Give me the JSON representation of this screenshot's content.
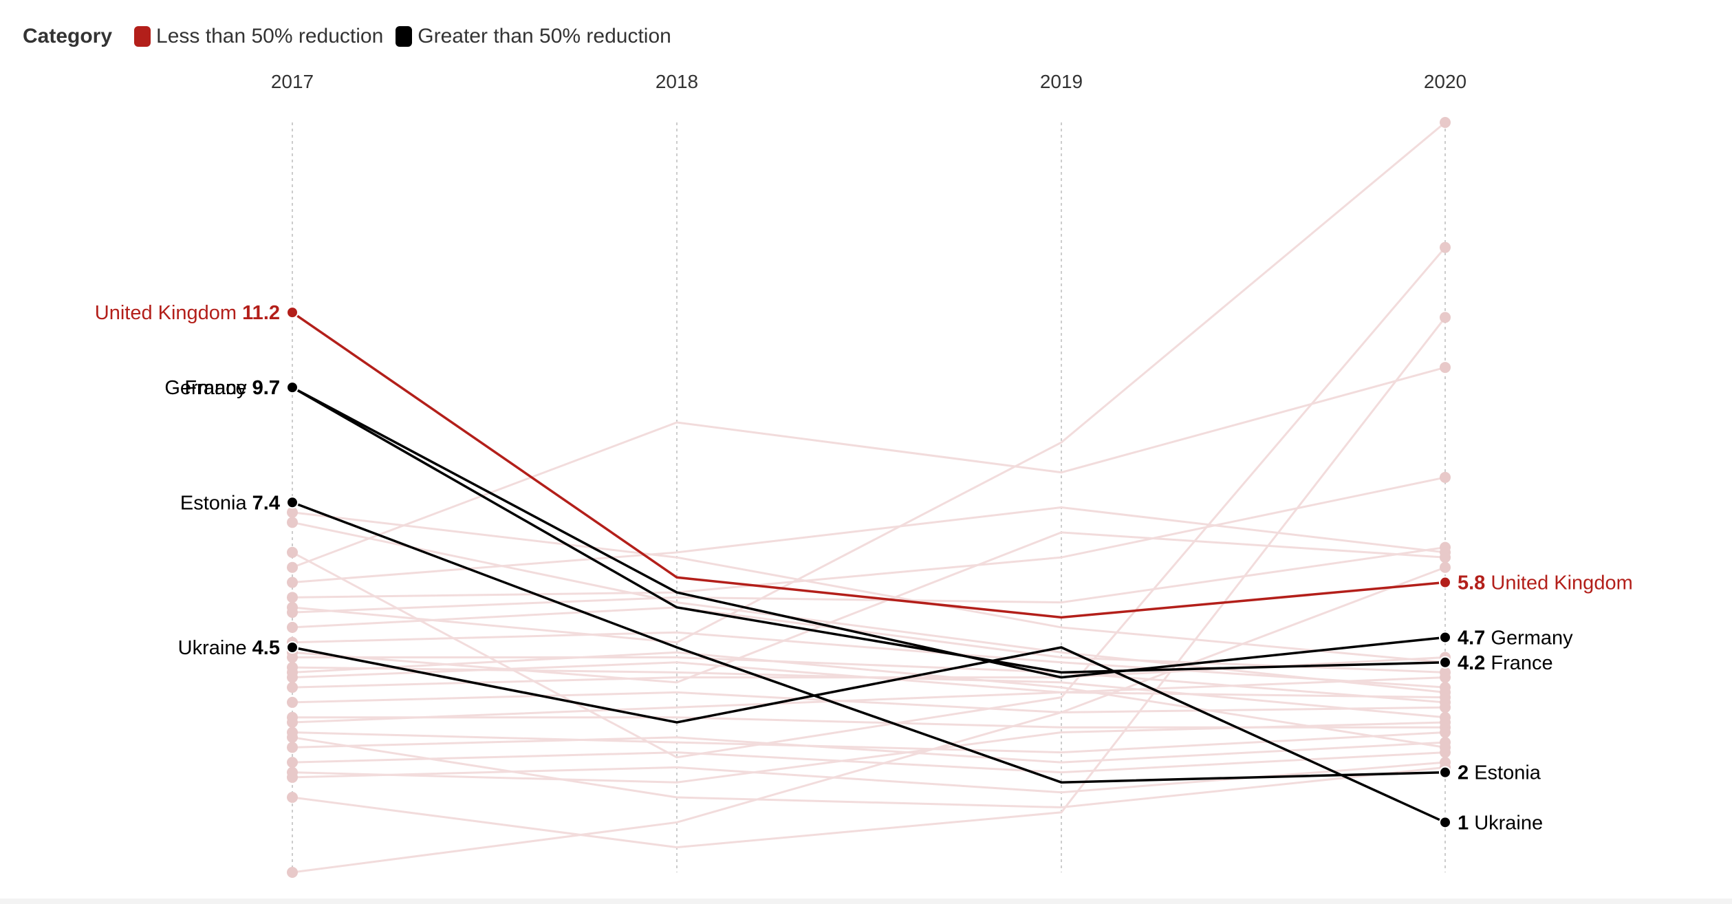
{
  "legend": {
    "title": "Category",
    "items": [
      {
        "label": "Less than 50% reduction",
        "color": "#b31f1a"
      },
      {
        "label": "Greater than 50% reduction",
        "color": "#000000"
      }
    ]
  },
  "chart_data": {
    "type": "line",
    "subtype": "slope",
    "x": [
      "2017",
      "2018",
      "2019",
      "2020"
    ],
    "ylim": [
      0,
      15
    ],
    "colors": {
      "less": "#b31f1a",
      "greater": "#000000",
      "background": "#f2dcdc",
      "background_dot": "#e8c9c9"
    },
    "highlighted": [
      {
        "name": "United Kingdom",
        "category": "less",
        "values": [
          11.2,
          5.9,
          5.1,
          5.8
        ],
        "label_left": "11.2",
        "label_right": "5.8"
      },
      {
        "name": "Germany",
        "category": "greater",
        "values": [
          9.7,
          5.6,
          3.9,
          4.7
        ],
        "label_left": "9.7",
        "label_right": "4.7"
      },
      {
        "name": "France",
        "category": "greater",
        "values": [
          9.7,
          5.3,
          4.0,
          4.2
        ],
        "label_left": "9.7",
        "label_right": "4.2"
      },
      {
        "name": "Estonia",
        "category": "greater",
        "values": [
          7.4,
          4.5,
          1.8,
          2.0
        ],
        "label_left": "7.4",
        "label_right": "2"
      },
      {
        "name": "Ukraine",
        "category": "greater",
        "values": [
          4.5,
          3.0,
          4.5,
          1.0
        ],
        "label_left": "4.5",
        "label_right": "1"
      }
    ],
    "background_series": [
      [
        7.2,
        6.3,
        4.9,
        4.2
      ],
      [
        7.0,
        5.4,
        4.4,
        3.6
      ],
      [
        6.4,
        2.3,
        3.5,
        12.5
      ],
      [
        6.1,
        9.0,
        8.0,
        10.1
      ],
      [
        5.8,
        6.4,
        7.3,
        6.4
      ],
      [
        5.5,
        5.6,
        6.3,
        7.9
      ],
      [
        5.2,
        5.5,
        5.4,
        6.5
      ],
      [
        4.9,
        5.3,
        4.3,
        4.0
      ],
      [
        4.6,
        4.8,
        4.2,
        3.7
      ],
      [
        4.3,
        4.3,
        4.0,
        3.4
      ],
      [
        4.1,
        4.0,
        3.8,
        3.1
      ],
      [
        3.9,
        4.2,
        3.6,
        3.9
      ],
      [
        3.7,
        3.9,
        3.9,
        4.3
      ],
      [
        3.4,
        3.6,
        3.2,
        3.3
      ],
      [
        3.1,
        3.1,
        2.9,
        2.9
      ],
      [
        2.8,
        2.6,
        2.4,
        2.8
      ],
      [
        2.5,
        2.7,
        2.2,
        2.6
      ],
      [
        2.2,
        2.4,
        2.0,
        2.4
      ],
      [
        1.9,
        2.1,
        1.6,
        2.2
      ],
      [
        1.5,
        0.5,
        1.2,
        11.1
      ],
      [
        0.0,
        1.0,
        3.2,
        6.1
      ],
      [
        2.0,
        1.8,
        2.8,
        3.0
      ],
      [
        2.7,
        1.5,
        1.3,
        2.1
      ],
      [
        4.4,
        3.8,
        6.8,
        6.3
      ],
      [
        3.0,
        3.3,
        3.6,
        3.5
      ],
      [
        5.3,
        4.6,
        8.6,
        15.0
      ],
      [
        4.0,
        4.4,
        3.7,
        2.5
      ]
    ]
  }
}
